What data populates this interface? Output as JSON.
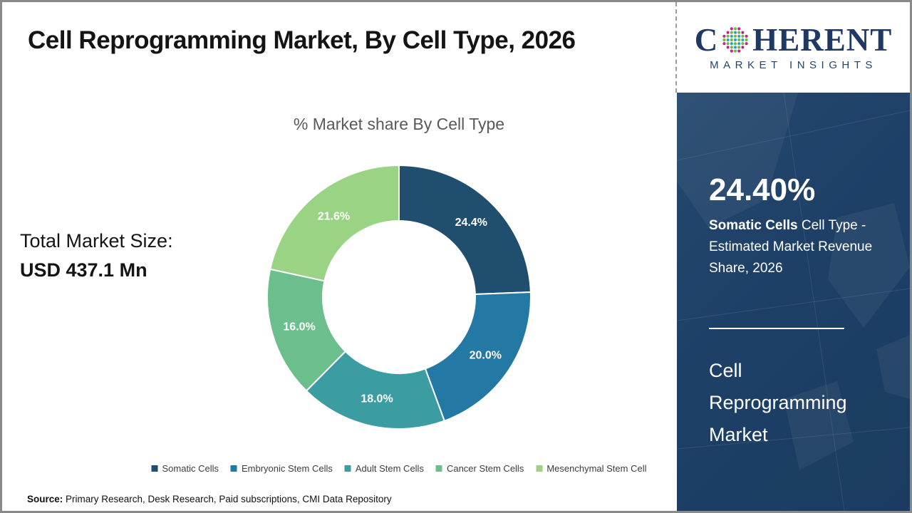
{
  "title": "Cell Reprogramming Market, By Cell Type, 2026",
  "logo": {
    "word_start": "C",
    "word_end": "HERENT",
    "tagline": "MARKET INSIGHTS"
  },
  "chart_data": {
    "type": "pie",
    "variant": "donut",
    "title": "% Market share By Cell Type",
    "direction": "clockwise",
    "start_angle_deg": 0,
    "legend_position": "bottom",
    "segments": [
      {
        "label": "Somatic Cells",
        "value": 24.4,
        "display": "24.4%",
        "color": "#1F4E6E"
      },
      {
        "label": "Embryonic Stem Cells",
        "value": 20.0,
        "display": "20.0%",
        "color": "#2379A4"
      },
      {
        "label": "Adult Stem Cells",
        "value": 18.0,
        "display": "18.0%",
        "color": "#3B9DA1"
      },
      {
        "label": "Cancer Stem Cells",
        "value": 16.0,
        "display": "16.0%",
        "color": "#6CBE8D"
      },
      {
        "label": "Mesenchymal Stem Cell",
        "value": 21.6,
        "display": "21.6%",
        "color": "#9BD385"
      }
    ]
  },
  "total_market": {
    "label": "Total Market Size:",
    "value": "USD 437.1 Mn"
  },
  "sidebar": {
    "stat_value": "24.40%",
    "stat_label_bold": "Somatic Cells",
    "stat_label_rest": " Cell Type - Estimated Market Revenue Share, 2026",
    "panel_title": "Cell Reprogramming Market",
    "background_color": "#1E4067"
  },
  "source": {
    "label": "Source:",
    "text": " Primary Research, Desk Research, Paid subscriptions, CMI Data Repository"
  },
  "colors": {
    "logo_navy": "#1F3864",
    "title_text": "#141414",
    "subtitle_text": "#595959"
  }
}
